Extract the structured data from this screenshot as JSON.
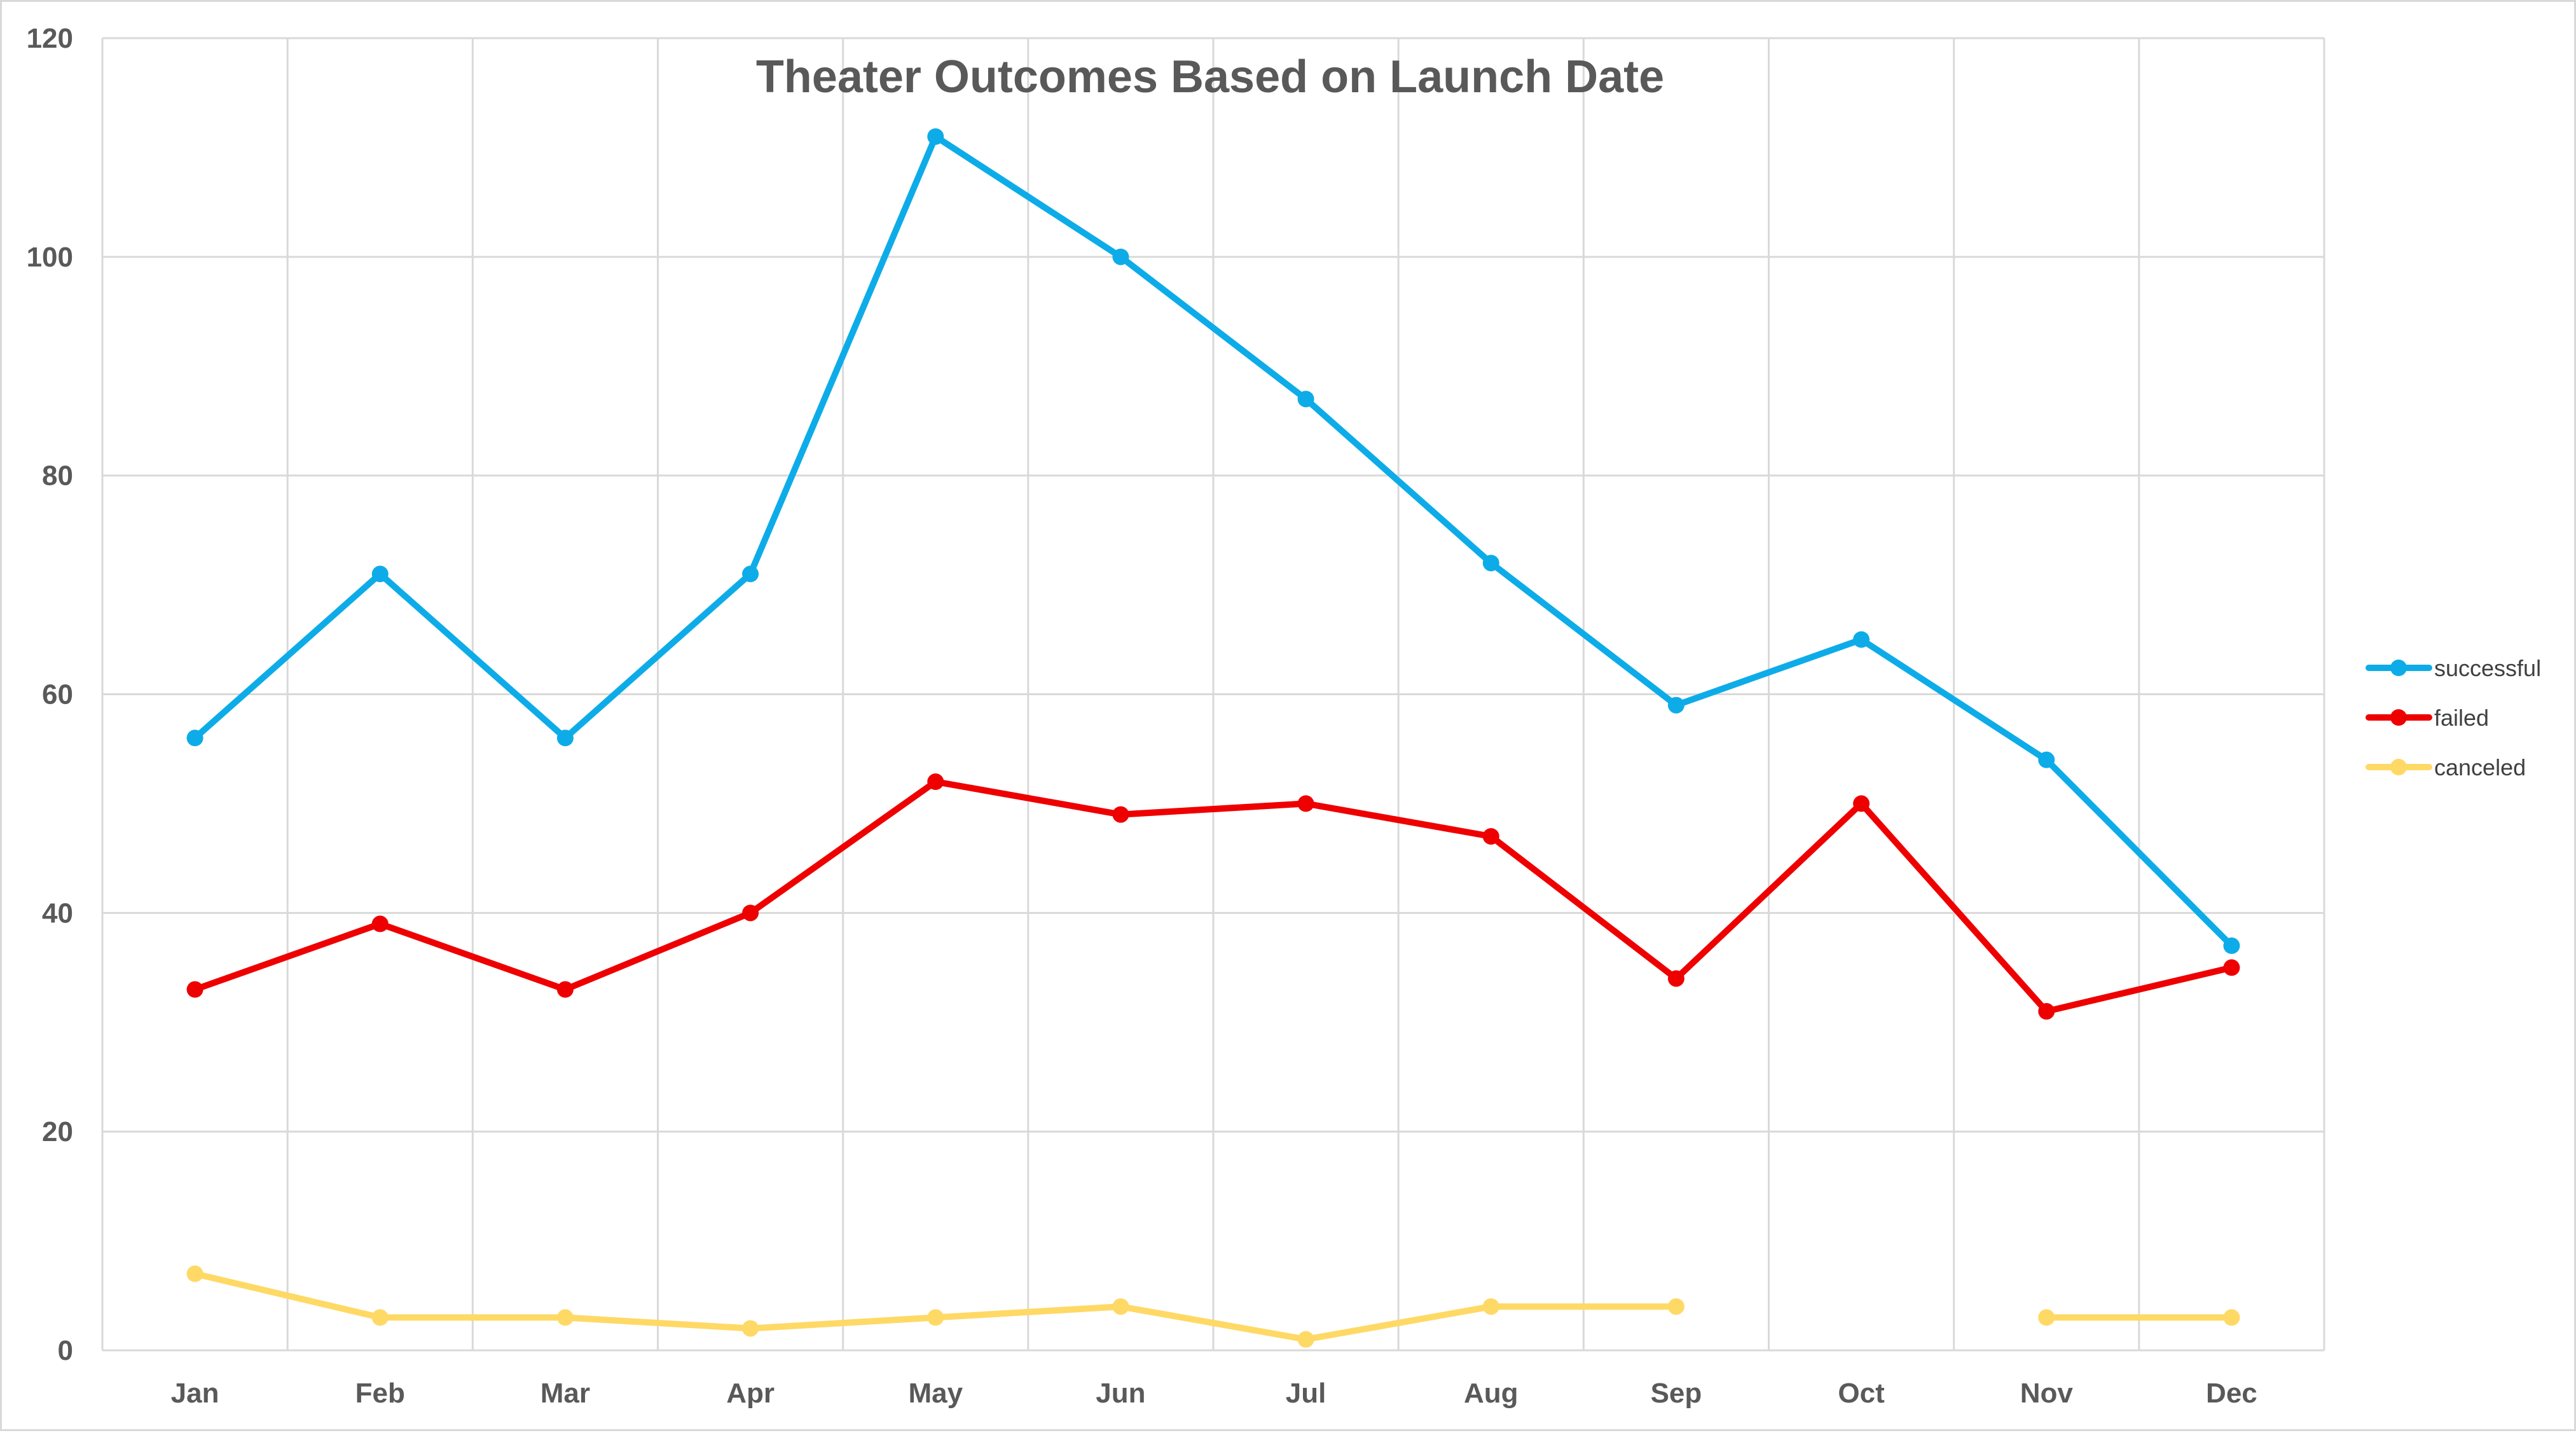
{
  "chart_data": {
    "type": "line",
    "title": "Theater Outcomes Based on Launch Date",
    "xlabel": "",
    "ylabel": "",
    "categories": [
      "Jan",
      "Feb",
      "Mar",
      "Apr",
      "May",
      "Jun",
      "Jul",
      "Aug",
      "Sep",
      "Oct",
      "Nov",
      "Dec"
    ],
    "ylim": [
      0,
      120
    ],
    "yticks": [
      0,
      20,
      40,
      60,
      80,
      100,
      120
    ],
    "grid": true,
    "legend_position": "right",
    "series": [
      {
        "name": "successful",
        "color": "#0DACE8",
        "values": [
          56,
          71,
          56,
          71,
          111,
          100,
          87,
          72,
          59,
          65,
          54,
          37
        ]
      },
      {
        "name": "failed",
        "color": "#EE0000",
        "values": [
          33,
          39,
          33,
          40,
          52,
          49,
          50,
          47,
          34,
          50,
          31,
          35
        ]
      },
      {
        "name": "canceled",
        "color": "#FFD966",
        "values": [
          7,
          3,
          3,
          2,
          3,
          4,
          1,
          4,
          4,
          null,
          3,
          3
        ]
      }
    ]
  }
}
